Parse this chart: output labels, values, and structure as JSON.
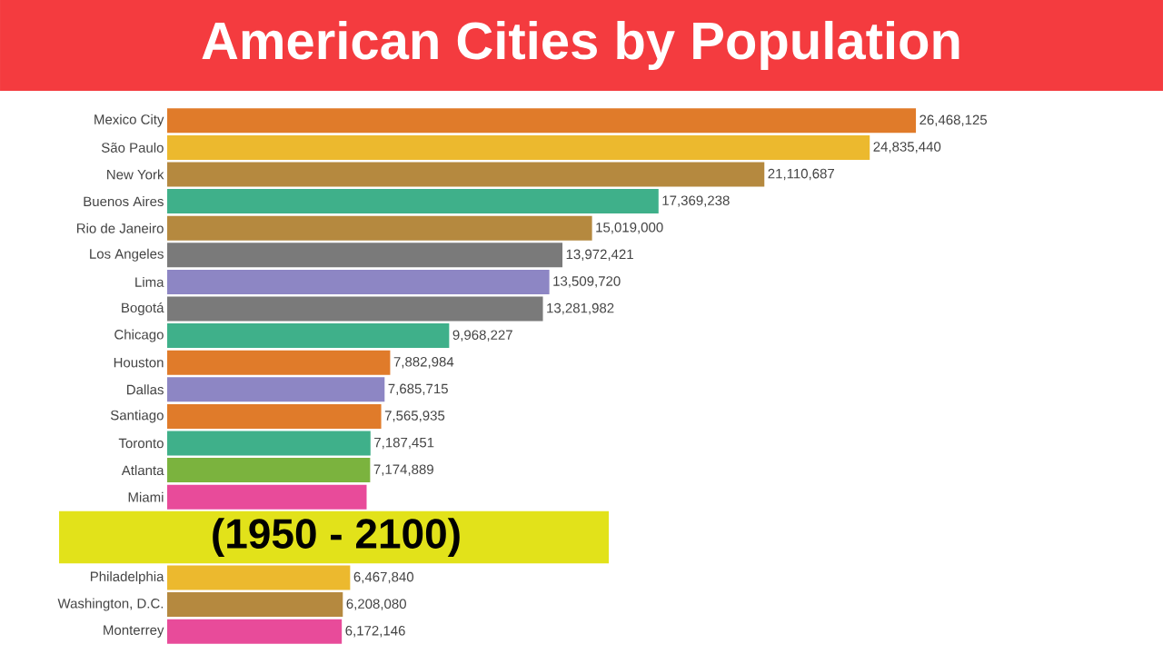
{
  "chart_data": {
    "type": "bar",
    "orientation": "horizontal",
    "title": "American Cities by Population",
    "subtitle": "(1950 - 2100)",
    "categories": [
      "Mexico City",
      "São Paulo",
      "New York",
      "Buenos Aires",
      "Rio de Janeiro",
      "Los Angeles",
      "Lima",
      "Bogotá",
      "Chicago",
      "Houston",
      "Dallas",
      "Santiago",
      "Toronto",
      "Atlanta",
      "Miami",
      null,
      null,
      "Philadelphia",
      "Washington, D.C.",
      "Monterrey"
    ],
    "values": [
      26468125,
      24835440,
      21110687,
      17369238,
      15019000,
      13972421,
      13509720,
      13281982,
      9968227,
      7882984,
      7685715,
      7565935,
      7187451,
      7174889,
      7050000,
      null,
      null,
      6467840,
      6208080,
      6172146
    ],
    "value_labels": [
      "26,468,125",
      "24,835,440",
      "21,110,687",
      "17,369,238",
      "15,019,000",
      "13,972,421",
      "13,509,720",
      "13,281,982",
      "9,968,227",
      "7,882,984",
      "7,685,715",
      "7,565,935",
      "7,187,451",
      "7,174,889",
      null,
      null,
      null,
      "6,467,840",
      "6,208,080",
      "6,172,146"
    ],
    "colors": [
      "#e07b2a",
      "#ecb92e",
      "#b5893f",
      "#3fb08a",
      "#b5893f",
      "#7a7a7a",
      "#8d86c4",
      "#7a7a7a",
      "#3fb08a",
      "#e07b2a",
      "#8d86c4",
      "#e07b2a",
      "#3fb08a",
      "#7bb33e",
      "#e84b9a",
      null,
      null,
      "#ecb92e",
      "#b5893f",
      "#e84b9a"
    ]
  }
}
